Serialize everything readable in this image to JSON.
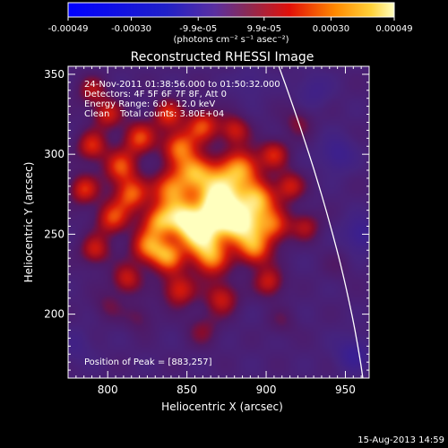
{
  "chart_data": {
    "type": "heatmap",
    "title": "Reconstructed RHESSI Image",
    "xlabel": "Heliocentric X (arcsec)",
    "ylabel": "Heliocentric Y (arcsec)",
    "xlim": [
      775,
      965
    ],
    "ylim": [
      160,
      355
    ],
    "x_ticks": [
      800,
      850,
      900,
      950
    ],
    "y_ticks": [
      200,
      250,
      300,
      350
    ],
    "colorbar": {
      "range": [
        -0.00049,
        0.00049
      ],
      "tick_values": [
        -0.00049,
        -0.0003,
        -9.9e-05,
        9.9e-05,
        0.0003,
        0.00049
      ],
      "tick_labels": [
        "-0.00049",
        "-0.00030",
        "-9.9e-05",
        "9.9e-05",
        "0.00030",
        "0.00049"
      ],
      "unit_label": "(photons cm⁻² s⁻¹ asec⁻²)"
    },
    "peak": {
      "x": 883,
      "y": 257
    },
    "blobs": [
      {
        "x": 883,
        "y": 257,
        "a": 1.0,
        "s": 13
      },
      {
        "x": 868,
        "y": 266,
        "a": 0.85,
        "s": 12
      },
      {
        "x": 858,
        "y": 250,
        "a": 0.8,
        "s": 12
      },
      {
        "x": 848,
        "y": 260,
        "a": 0.75,
        "s": 11
      },
      {
        "x": 872,
        "y": 280,
        "a": 0.75,
        "s": 12
      },
      {
        "x": 895,
        "y": 272,
        "a": 0.7,
        "s": 11
      },
      {
        "x": 840,
        "y": 278,
        "a": 0.7,
        "s": 11
      },
      {
        "x": 855,
        "y": 290,
        "a": 0.7,
        "s": 11
      },
      {
        "x": 885,
        "y": 292,
        "a": 0.65,
        "s": 11
      },
      {
        "x": 832,
        "y": 258,
        "a": 0.65,
        "s": 10
      },
      {
        "x": 825,
        "y": 242,
        "a": 0.6,
        "s": 10
      },
      {
        "x": 838,
        "y": 236,
        "a": 0.65,
        "s": 10
      },
      {
        "x": 865,
        "y": 235,
        "a": 0.65,
        "s": 11
      },
      {
        "x": 893,
        "y": 240,
        "a": 0.6,
        "s": 10
      },
      {
        "x": 905,
        "y": 255,
        "a": 0.55,
        "s": 10
      },
      {
        "x": 815,
        "y": 275,
        "a": 0.6,
        "s": 10
      },
      {
        "x": 803,
        "y": 260,
        "a": 0.55,
        "s": 10
      },
      {
        "x": 808,
        "y": 292,
        "a": 0.55,
        "s": 10
      },
      {
        "x": 820,
        "y": 310,
        "a": 0.55,
        "s": 10
      },
      {
        "x": 845,
        "y": 305,
        "a": 0.6,
        "s": 10
      },
      {
        "x": 860,
        "y": 318,
        "a": 0.55,
        "s": 10
      },
      {
        "x": 838,
        "y": 325,
        "a": 0.5,
        "s": 9
      },
      {
        "x": 800,
        "y": 325,
        "a": 0.45,
        "s": 9
      },
      {
        "x": 790,
        "y": 305,
        "a": 0.5,
        "s": 9
      },
      {
        "x": 785,
        "y": 278,
        "a": 0.5,
        "s": 9
      },
      {
        "x": 792,
        "y": 240,
        "a": 0.45,
        "s": 9
      },
      {
        "x": 812,
        "y": 222,
        "a": 0.45,
        "s": 9
      },
      {
        "x": 845,
        "y": 215,
        "a": 0.5,
        "s": 10
      },
      {
        "x": 872,
        "y": 210,
        "a": 0.45,
        "s": 10
      },
      {
        "x": 902,
        "y": 220,
        "a": 0.45,
        "s": 9
      },
      {
        "x": 915,
        "y": 280,
        "a": 0.45,
        "s": 9
      },
      {
        "x": 905,
        "y": 300,
        "a": 0.45,
        "s": 9
      },
      {
        "x": 925,
        "y": 255,
        "a": 0.35,
        "s": 9
      },
      {
        "x": 920,
        "y": 320,
        "a": 0.25,
        "s": 9
      },
      {
        "x": 880,
        "y": 315,
        "a": 0.45,
        "s": 9
      },
      {
        "x": 790,
        "y": 340,
        "a": 0.35,
        "s": 9
      },
      {
        "x": 820,
        "y": 198,
        "a": 0.2,
        "s": 9
      },
      {
        "x": 860,
        "y": 190,
        "a": 0.25,
        "s": 10
      },
      {
        "x": 800,
        "y": 205,
        "a": 0.2,
        "s": 9
      },
      {
        "x": 910,
        "y": 195,
        "a": 0.15,
        "s": 9
      },
      {
        "x": 945,
        "y": 230,
        "a": 0.1,
        "s": 9
      },
      {
        "x": 930,
        "y": 340,
        "a": -0.2,
        "s": 10
      },
      {
        "x": 955,
        "y": 175,
        "a": -0.35,
        "s": 10
      },
      {
        "x": 945,
        "y": 300,
        "a": -0.3,
        "s": 10
      },
      {
        "x": 890,
        "y": 345,
        "a": -0.15,
        "s": 9
      },
      {
        "x": 960,
        "y": 250,
        "a": -0.35,
        "s": 10
      },
      {
        "x": 780,
        "y": 180,
        "a": -0.15,
        "s": 10
      }
    ]
  },
  "annotations": {
    "time_range": "24-Nov-2011 01:38:56.000 to 01:50:32.000",
    "detectors": "Detectors: 4F 5F 6F 7F 8F, Att 0",
    "energy_range": "Energy Range: 6.0 - 12.0 keV",
    "method": "Clean",
    "total_counts": "Total counts: 3.80E+04",
    "peak_position": "Position of Peak = [883,257]"
  },
  "footer_date": "15-Aug-2013 14:59"
}
